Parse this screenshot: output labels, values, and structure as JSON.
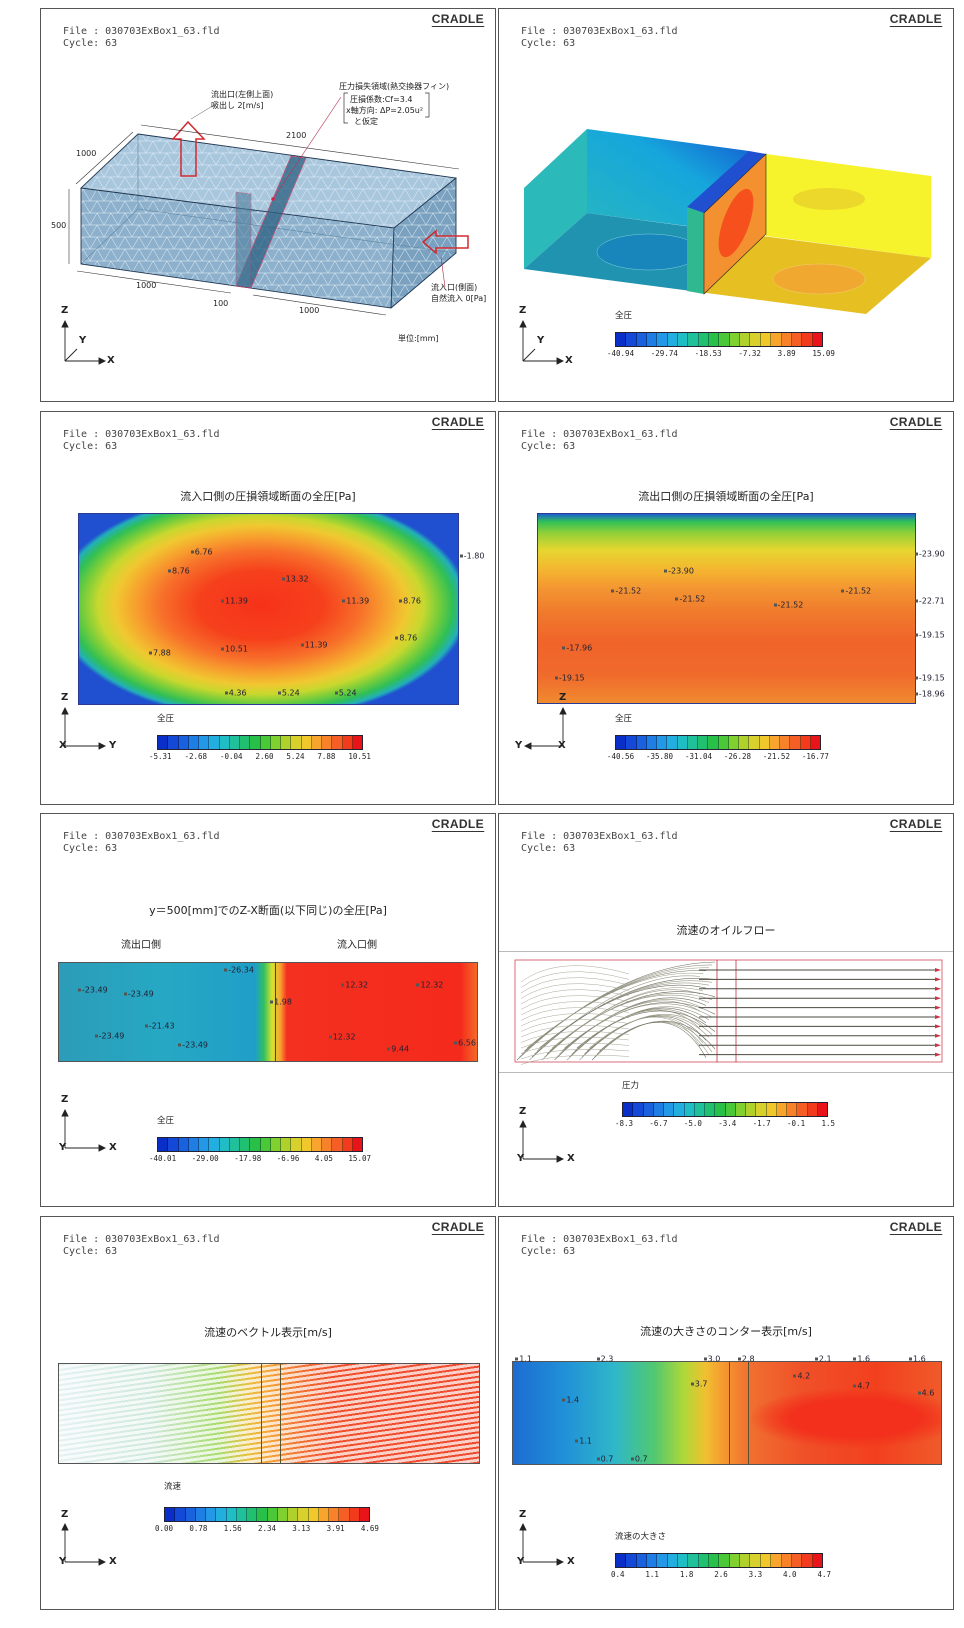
{
  "file_label": "File : 030703ExBox1_63.fld",
  "cycle_label": "Cycle: 63",
  "logo": "CRADLE",
  "palette": [
    "#0a2fc8",
    "#1448d6",
    "#1a62dd",
    "#1f7ee3",
    "#2398e6",
    "#23aee0",
    "#1fbdc4",
    "#1fc09a",
    "#20c070",
    "#28c048",
    "#4ac838",
    "#80d030",
    "#b0d02c",
    "#d8d02c",
    "#f0c82c",
    "#f7a52c",
    "#f7822a",
    "#f55e24",
    "#f23a1d",
    "#e8141a"
  ],
  "panels": [
    {
      "axes": {
        "z": "Z",
        "y": "Y",
        "x": "X"
      },
      "notes": {
        "outlet": "流出口(左側上面)",
        "outlet_spec": "吸出し 2[m/s]",
        "loss_region": "圧力損失領域(熱交換器フィン)",
        "loss_coef": "圧損係数:Cf=3.4",
        "loss_dp": "x軸方向: ΔP=2.05u²",
        "loss_assume": "と仮定",
        "dim_length": "2100",
        "dim_depth": "1000",
        "dim_height": "500",
        "dim_left": "1000",
        "dim_gap": "100",
        "dim_right": "1000",
        "inlet": "流入口(側面)",
        "inlet_spec": "自然流入 0[Pa]",
        "unit": "単位:[mm]"
      }
    },
    {
      "axes": {
        "z": "Z",
        "y": "Y",
        "x": "X"
      },
      "legend": {
        "title": "全圧",
        "ticks": [
          "-40.94",
          "-29.74",
          "-18.53",
          "-7.32",
          "3.89",
          "15.09"
        ]
      }
    },
    {
      "title": "流入口側の圧損領域断面の全圧[Pa]",
      "axes": {
        "z": "Z",
        "y": "Y",
        "x": "X"
      },
      "legend": {
        "title": "全圧",
        "ticks": [
          "-5.31",
          "-2.68",
          "-0.04",
          "2.60",
          "5.24",
          "7.88",
          "10.51"
        ]
      },
      "labels": [
        "6.76",
        "8.76",
        "13.32",
        "11.39",
        "11.39",
        "8.76",
        "10.51",
        "11.39",
        "8.76",
        "7.88",
        "4.36",
        "5.24",
        "5.24",
        "-1.80"
      ]
    },
    {
      "title": "流出口側の圧損領域断面の全圧[Pa]",
      "axes": {
        "z": "Z",
        "y": "Y",
        "x": "X"
      },
      "legend": {
        "title": "全圧",
        "ticks": [
          "-40.56",
          "-35.80",
          "-31.04",
          "-26.28",
          "-21.52",
          "-16.77"
        ]
      },
      "labels": [
        "-23.90",
        "-23.90",
        "-21.52",
        "-21.52",
        "-21.52",
        "-21.52",
        "-22.71",
        "-19.15",
        "-17.96",
        "-19.15",
        "-19.15",
        "-18.96"
      ]
    },
    {
      "title": "y＝500[mm]でのZ-X断面(以下同じ)の全圧[Pa]",
      "outlet_side": "流出口側",
      "inlet_side": "流入口側",
      "axes": {
        "z": "Z",
        "y": "Y",
        "x": "X"
      },
      "legend": {
        "title": "全圧",
        "ticks": [
          "-40.01",
          "-29.00",
          "-17.98",
          "-6.96",
          "4.05",
          "15.07"
        ]
      },
      "labels": [
        "-26.34",
        "-23.49",
        "-23.49",
        "-21.43",
        "-23.49",
        "-23.49",
        "1.98",
        "12.32",
        "12.32",
        "12.32",
        "6.56",
        "9.44"
      ]
    },
    {
      "title": "流速のオイルフロー",
      "axes": {
        "z": "Z",
        "y": "Y",
        "x": "X"
      },
      "legend": {
        "title": "圧力",
        "ticks": [
          "-8.3",
          "-6.7",
          "-5.0",
          "-3.4",
          "-1.7",
          "-0.1",
          "1.5"
        ]
      }
    },
    {
      "title": "流速のベクトル表示[m/s]",
      "axes": {
        "z": "Z",
        "y": "Y",
        "x": "X"
      },
      "legend": {
        "title": "流速",
        "ticks": [
          "0.00",
          "0.78",
          "1.56",
          "2.34",
          "3.13",
          "3.91",
          "4.69"
        ]
      }
    },
    {
      "title": "流速の大きさのコンター表示[m/s]",
      "axes": {
        "z": "Z",
        "y": "Y",
        "x": "X"
      },
      "legend": {
        "title": "流速の大きさ",
        "ticks": [
          "0.4",
          "1.1",
          "1.8",
          "2.6",
          "3.3",
          "4.0",
          "4.7"
        ]
      },
      "labels": [
        "1.1",
        "2.3",
        "3.0",
        "2.8",
        "2.1",
        "1.6",
        "1.6",
        "1.4",
        "1.1",
        "0.7",
        "0.7",
        "3.7",
        "4.2",
        "4.7",
        "4.6"
      ]
    }
  ]
}
